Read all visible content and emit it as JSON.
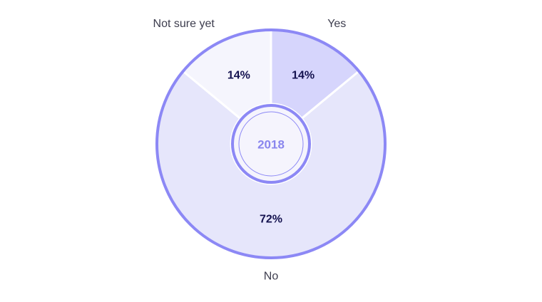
{
  "chart_data": {
    "type": "pie",
    "variant": "donut",
    "center_label": "2018",
    "categories": [
      "Yes",
      "No",
      "Not sure yet"
    ],
    "values": [
      14,
      72,
      14
    ],
    "value_labels": [
      "14%",
      "72%",
      "14%"
    ],
    "unit": "%",
    "title": "",
    "legend": "none",
    "colors": {
      "Yes": "#d6d5fc",
      "No": "#e6e6fb",
      "Not sure yet": "#f5f5fd",
      "outline": "#8c88f5",
      "center_fill": "#f5f4fd",
      "center_text": "#8a86ee"
    }
  }
}
